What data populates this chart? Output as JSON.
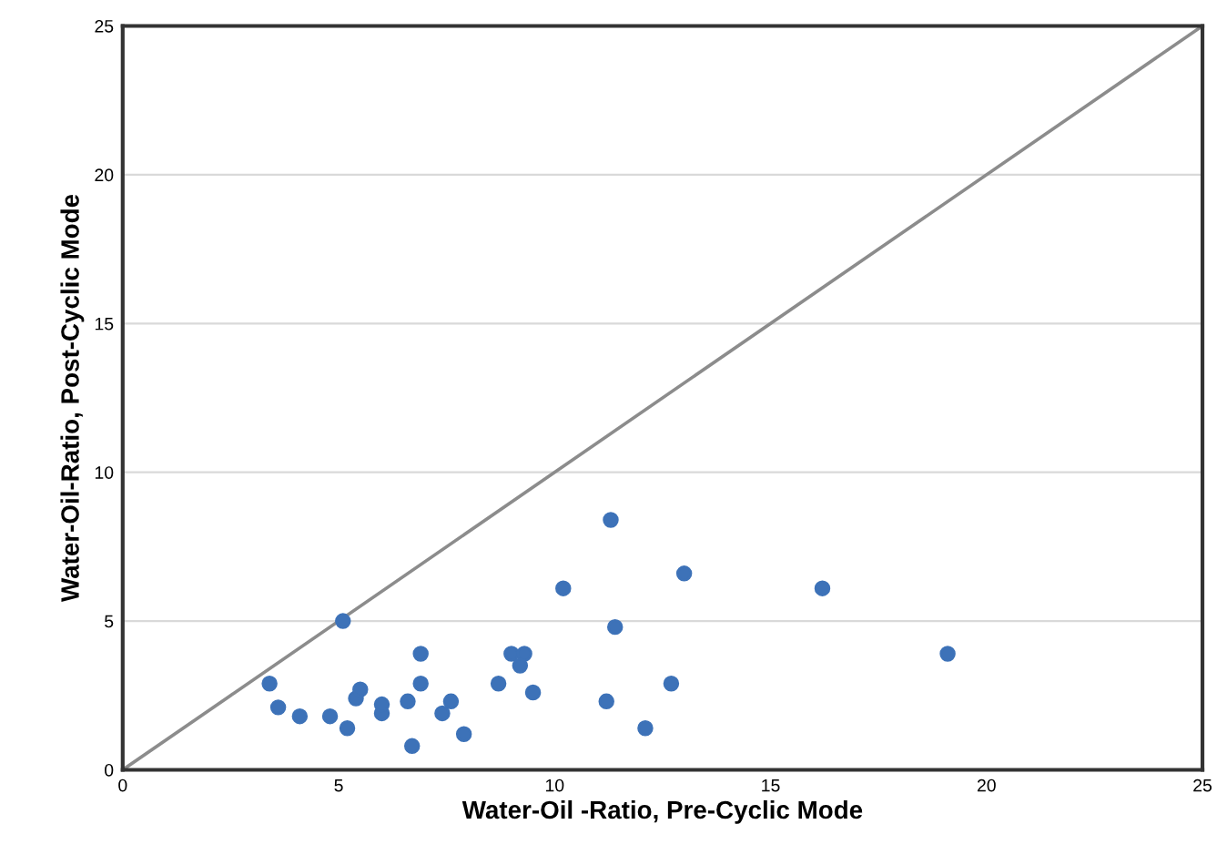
{
  "chart_data": {
    "type": "scatter",
    "xlabel": "Water-Oil -Ratio, Pre-Cyclic Mode",
    "ylabel": "Water-Oil-Ratio, Post-Cyclic Mode",
    "xlim": [
      0,
      25
    ],
    "ylim": [
      0,
      25
    ],
    "xticks": [
      0,
      5,
      10,
      15,
      20,
      25
    ],
    "yticks": [
      0,
      5,
      10,
      15,
      20,
      25
    ],
    "grid": "y",
    "series": [
      {
        "marker": "circle",
        "color": "#3d72b8",
        "x": [
          3.4,
          3.6,
          4.1,
          4.8,
          5.1,
          5.2,
          5.4,
          5.5,
          6.0,
          6.0,
          6.6,
          6.7,
          6.9,
          6.9,
          7.4,
          7.6,
          7.9,
          8.7,
          9.0,
          9.3,
          9.2,
          9.5,
          10.2,
          11.2,
          11.3,
          11.4,
          12.1,
          12.7,
          13.0,
          16.2,
          19.1
        ],
        "values": [
          2.9,
          2.1,
          1.8,
          1.8,
          5.0,
          1.4,
          2.4,
          2.7,
          1.9,
          2.2,
          2.3,
          0.8,
          2.9,
          3.9,
          1.9,
          2.3,
          1.2,
          2.9,
          3.9,
          3.9,
          3.5,
          2.6,
          6.1,
          2.3,
          8.4,
          4.8,
          1.4,
          2.9,
          6.6,
          6.1,
          3.9
        ]
      },
      {
        "type": "line",
        "marker": "none",
        "color": "#8c8c8c",
        "x": [
          0,
          25
        ],
        "values": [
          0,
          25
        ]
      }
    ]
  }
}
